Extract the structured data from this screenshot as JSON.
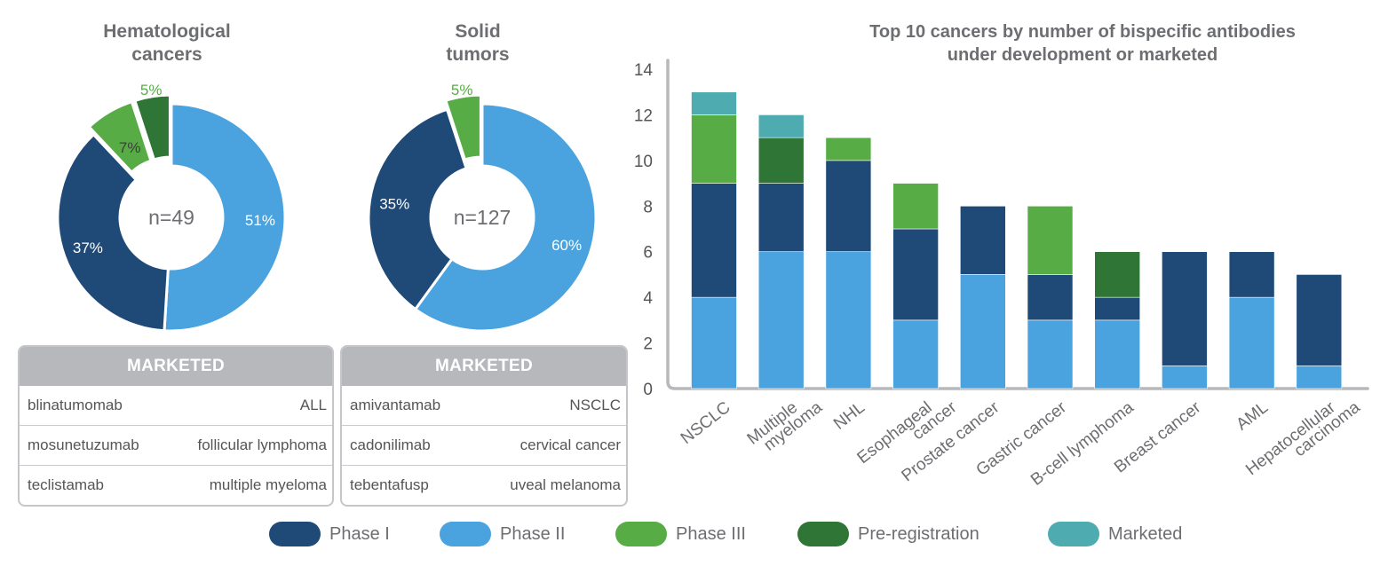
{
  "colors": {
    "phase1": "#1f4a78",
    "phase2": "#4aa3df",
    "phase3": "#58ac46",
    "prereg": "#2f7535",
    "marketed": "#4eacb1"
  },
  "donuts": [
    {
      "title": "Hematological\ncancers",
      "center": "n=49",
      "slices": [
        {
          "label": "51%",
          "value": 51,
          "series": "phase2"
        },
        {
          "label": "37%",
          "value": 37,
          "series": "phase1"
        },
        {
          "label": "7%",
          "value": 7,
          "series": "phase3"
        },
        {
          "label": "5%",
          "value": 5,
          "series": "prereg"
        }
      ]
    },
    {
      "title": "Solid\ntumors",
      "center": "n=127",
      "slices": [
        {
          "label": "60%",
          "value": 60,
          "series": "phase2"
        },
        {
          "label": "35%",
          "value": 35,
          "series": "phase1"
        },
        {
          "label": "5%",
          "value": 5,
          "series": "phase3"
        }
      ]
    }
  ],
  "marketed_tables": [
    {
      "header": "MARKETED",
      "rows": [
        {
          "drug": "blinatumomab",
          "indication": "ALL"
        },
        {
          "drug": "mosunetuzumab",
          "indication": "follicular lymphoma"
        },
        {
          "drug": "teclistamab",
          "indication": "multiple myeloma"
        }
      ]
    },
    {
      "header": "MARKETED",
      "rows": [
        {
          "drug": "amivantamab",
          "indication": "NSCLC"
        },
        {
          "drug": "cadonilimab",
          "indication": "cervical cancer"
        },
        {
          "drug": "tebentafusp",
          "indication": "uveal melanoma"
        }
      ]
    }
  ],
  "chart_data": {
    "type": "bar",
    "stacked": true,
    "title": "Top 10 cancers by number of bispecific antibodies\nunder development or marketed",
    "ylim": [
      0,
      14
    ],
    "yticks": [
      0,
      2,
      4,
      6,
      8,
      10,
      12,
      14
    ],
    "categories": [
      "NSCLC",
      "Multiple\nmyeloma",
      "NHL",
      "Esophageal\ncancer",
      "Prostate cancer",
      "Gastric cancer",
      "B-cell lymphoma",
      "Breast cancer",
      "AML",
      "Hepatocellular\ncarcinoma"
    ],
    "series": [
      {
        "name": "Phase II",
        "key": "phase2",
        "values": [
          4,
          6,
          6,
          3,
          5,
          3,
          3,
          1,
          4,
          1
        ]
      },
      {
        "name": "Phase I",
        "key": "phase1",
        "values": [
          5,
          3,
          4,
          4,
          3,
          2,
          1,
          5,
          2,
          4
        ]
      },
      {
        "name": "Phase III",
        "key": "phase3",
        "values": [
          3,
          0,
          1,
          2,
          0,
          3,
          0,
          0,
          0,
          0
        ]
      },
      {
        "name": "Pre-registration",
        "key": "prereg",
        "values": [
          0,
          2,
          0,
          0,
          0,
          0,
          2,
          0,
          0,
          0
        ]
      },
      {
        "name": "Marketed",
        "key": "marketed",
        "values": [
          1,
          1,
          0,
          0,
          0,
          0,
          0,
          0,
          0,
          0
        ]
      }
    ]
  },
  "legend": [
    {
      "label": "Phase I",
      "key": "phase1"
    },
    {
      "label": "Phase II",
      "key": "phase2"
    },
    {
      "label": "Phase III",
      "key": "phase3"
    },
    {
      "label": "Pre-registration",
      "key": "prereg"
    },
    {
      "label": "Marketed",
      "key": "marketed"
    }
  ]
}
